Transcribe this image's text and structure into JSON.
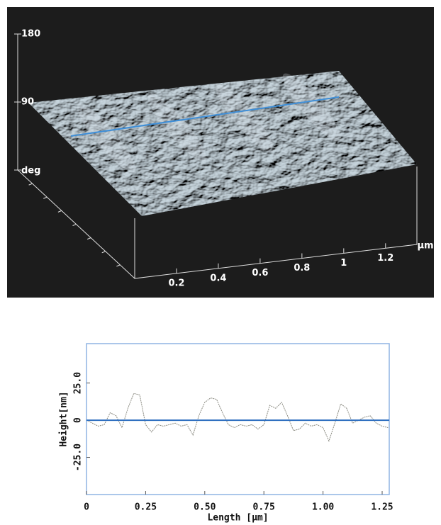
{
  "chart_data": [
    {
      "type": "surface3d",
      "xlabel": "µm",
      "zlabel": "deg",
      "xlim": [
        0,
        1.35
      ],
      "xticks": [
        0.2,
        0.4,
        0.6,
        0.8,
        1.0,
        1.2
      ],
      "zlim": [
        0,
        180
      ],
      "zticks": [
        180,
        90
      ],
      "color": "#7f95a3",
      "line_color": "#3f8fd8"
    },
    {
      "type": "line",
      "xlabel": "Length [µm]",
      "ylabel": "Height[nm]",
      "xlim": [
        0,
        1.28
      ],
      "ylim": [
        -50,
        51.5
      ],
      "xticks": [
        0,
        0.25,
        {
          "value": 0.5,
          "label": "0.50"
        },
        0.75,
        {
          "value": 1.0,
          "label": "1.00"
        },
        1.25
      ],
      "yticks": [
        {
          "value": 25,
          "label": "25.0"
        },
        0,
        {
          "value": -25,
          "label": "-25.0"
        }
      ],
      "hline": 0,
      "hline_color": "#2f6fc0",
      "frame_color": "#8fb4e3",
      "series": [
        {
          "color": "#8a8a80",
          "x": [
            0,
            0.025,
            0.05,
            0.075,
            0.1,
            0.125,
            0.15,
            0.175,
            0.2,
            0.225,
            0.25,
            0.275,
            0.3,
            0.325,
            0.35,
            0.375,
            0.4,
            0.425,
            0.45,
            0.475,
            0.5,
            0.525,
            0.55,
            0.575,
            0.6,
            0.625,
            0.65,
            0.675,
            0.7,
            0.725,
            0.75,
            0.775,
            0.8,
            0.825,
            0.85,
            0.875,
            0.9,
            0.925,
            0.95,
            0.975,
            1.0,
            1.025,
            1.05,
            1.075,
            1.1,
            1.125,
            1.15,
            1.175,
            1.2,
            1.225,
            1.25,
            1.275
          ],
          "values": [
            0,
            -2,
            -4,
            -3,
            5,
            3,
            -5,
            8,
            18,
            17,
            -3,
            -8,
            -3,
            -4,
            -3,
            -2,
            -4,
            -3,
            -10,
            3,
            12,
            15,
            14,
            5,
            -3,
            -5,
            -3,
            -4,
            -3,
            -6,
            -3,
            10,
            8,
            12,
            3,
            -7,
            -6,
            -2,
            -4,
            -3,
            -5,
            -14,
            -2,
            11,
            8,
            -2,
            0,
            2,
            3,
            -2,
            -4,
            -5
          ]
        }
      ]
    }
  ]
}
